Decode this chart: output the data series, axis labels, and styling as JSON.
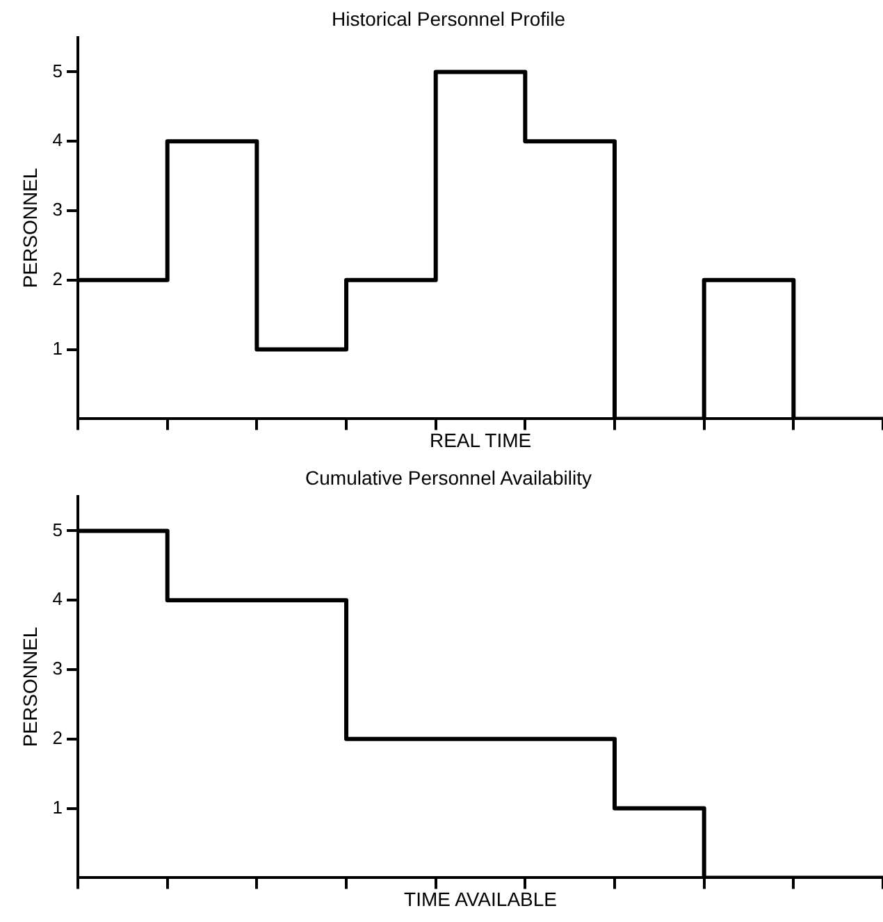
{
  "chart_data": [
    {
      "type": "step",
      "title": "Historical Personnel Profile",
      "xlabel": "REAL TIME",
      "ylabel": "PERSONNEL",
      "categories": [
        null,
        null,
        null,
        null,
        null,
        null,
        null,
        null,
        null,
        null
      ],
      "series": [
        {
          "color": "#000000",
          "values": [
            2,
            4,
            1,
            2,
            5,
            4,
            0,
            2,
            0,
            0
          ]
        }
      ],
      "ylim": [
        0,
        5.5
      ],
      "yticks": [
        1,
        2,
        3,
        4,
        5
      ],
      "tick_labels": "y",
      "grid": false,
      "legend": false,
      "marker": "none",
      "line_style": "solid"
    },
    {
      "type": "step",
      "title": "Cumulative Personnel Availability",
      "xlabel": "TIME AVAILABLE",
      "ylabel": "PERSONNEL",
      "categories": [
        null,
        null,
        null,
        null,
        null,
        null,
        null,
        null,
        null,
        null
      ],
      "series": [
        {
          "color": "#000000",
          "values": [
            5,
            4,
            4,
            2,
            2,
            2,
            1,
            0,
            0,
            0
          ]
        }
      ],
      "ylim": [
        0,
        5.5
      ],
      "yticks": [
        1,
        2,
        3,
        4,
        5
      ],
      "tick_labels": "y",
      "grid": false,
      "legend": false,
      "marker": "none",
      "line_style": "solid"
    }
  ]
}
